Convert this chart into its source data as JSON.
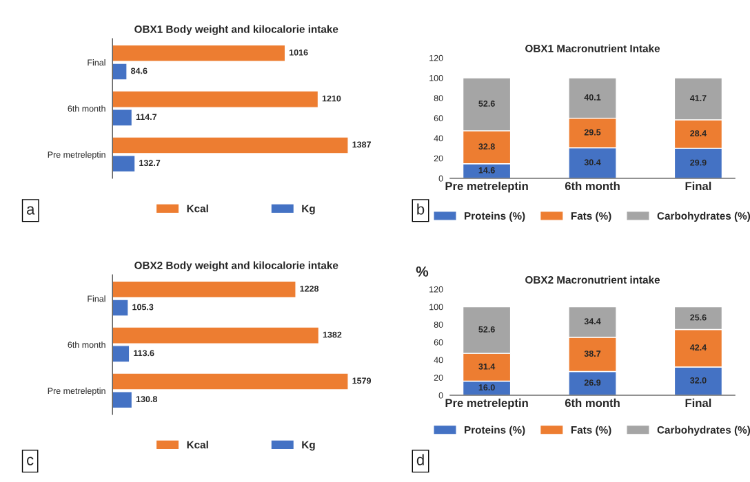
{
  "chart_data": [
    {
      "type": "bar",
      "orientation": "horizontal",
      "title": "OBX1 Body weight and kilocalorie intake",
      "categories": [
        "Final",
        "6th month",
        "Pre metreleptin"
      ],
      "series": [
        {
          "name": "Kcal",
          "color": "#ed7d31",
          "values": [
            1016,
            1210,
            1387
          ]
        },
        {
          "name": "Kg",
          "color": "#4472c4",
          "values": [
            84.6,
            114.7,
            132.7
          ]
        }
      ],
      "data_labels": true,
      "legend": "bottom",
      "tick_labels": "y",
      "annotations": [
        "a"
      ]
    },
    {
      "type": "bar",
      "stacked": true,
      "title": "OBX1 Macronutrient Intake",
      "categories": [
        "Pre metreleptin",
        "6th month",
        "Final"
      ],
      "series": [
        {
          "name": "Proteins (%)",
          "color": "#4472c4",
          "values": [
            14.6,
            30.4,
            29.9
          ]
        },
        {
          "name": "Fats (%)",
          "color": "#ed7d31",
          "values": [
            32.8,
            29.5,
            28.4
          ]
        },
        {
          "name": "Carbohydrates (%)",
          "color": "#a5a5a5",
          "values": [
            52.6,
            40.1,
            41.7
          ]
        }
      ],
      "ylim": [
        0,
        120
      ],
      "yticks": [
        0,
        20,
        40,
        60,
        80,
        100,
        120
      ],
      "data_labels": true,
      "legend": "bottom",
      "annotations": [
        "b"
      ]
    },
    {
      "type": "bar",
      "orientation": "horizontal",
      "title": "OBX2 Body weight and kilocalorie intake",
      "categories": [
        "Final",
        "6th month",
        "Pre metreleptin"
      ],
      "series": [
        {
          "name": "Kcal",
          "color": "#ed7d31",
          "values": [
            1228,
            1382,
            1579
          ]
        },
        {
          "name": "Kg",
          "color": "#4472c4",
          "values": [
            105.3,
            113.6,
            130.8
          ]
        }
      ],
      "data_labels": true,
      "legend": "bottom",
      "tick_labels": "y",
      "annotations": [
        "c"
      ]
    },
    {
      "type": "bar",
      "stacked": true,
      "title": "OBX2 Macronutrient intake",
      "ylabel": "%",
      "categories": [
        "Pre metreleptin",
        "6th month",
        "Final"
      ],
      "series": [
        {
          "name": "Proteins (%)",
          "color": "#4472c4",
          "values": [
            16.0,
            26.9,
            32.0
          ],
          "value_labels": [
            "16.0",
            "26.9",
            "32.0"
          ]
        },
        {
          "name": "Fats (%)",
          "color": "#ed7d31",
          "values": [
            31.4,
            38.7,
            42.4
          ],
          "value_labels": [
            "31.4",
            "38.7",
            "42.4"
          ]
        },
        {
          "name": "Carbohydrates (%)",
          "color": "#a5a5a5",
          "values": [
            52.6,
            34.4,
            25.6
          ],
          "value_labels": [
            "52.6",
            "34.4",
            "25.6"
          ]
        }
      ],
      "ylim": [
        0,
        120
      ],
      "yticks": [
        0,
        20,
        40,
        60,
        80,
        100,
        120
      ],
      "legend": "bottom",
      "annotations": [
        "d"
      ]
    }
  ]
}
